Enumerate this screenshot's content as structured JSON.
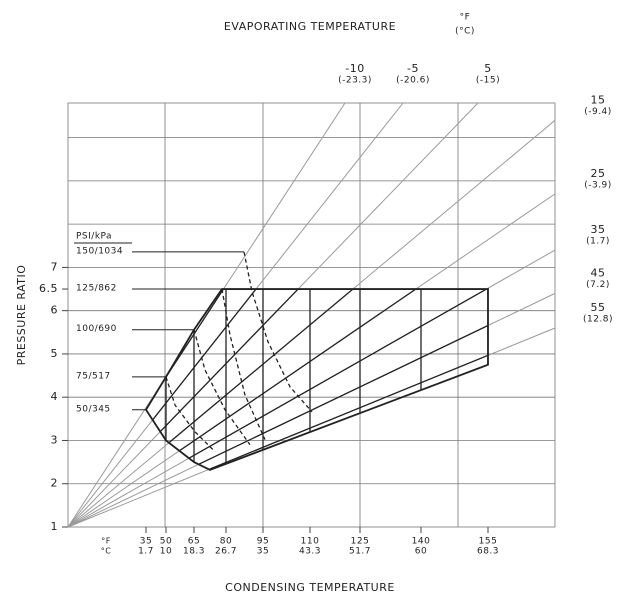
{
  "chart_data": {
    "type": "line",
    "title": "EVAPORATING TEMPERATURE",
    "title_unit_f": "°F",
    "title_unit_c": "(°C)",
    "xlabel": "CONDENSING TEMPERATURE",
    "ylabel": "PRESSURE RATIO",
    "xlim": [
      0,
      487
    ],
    "ylim": [
      1,
      10.8
    ],
    "xticks": [
      {
        "value": 78,
        "label": "35"
      },
      {
        "value": 98,
        "label": "50"
      },
      {
        "value": 126,
        "label": "65"
      },
      {
        "value": 158,
        "label": "80"
      },
      {
        "value": 195,
        "label": "95"
      },
      {
        "value": 242,
        "label": "110"
      },
      {
        "value": 292,
        "label": "125"
      },
      {
        "value": 353,
        "label": "140"
      },
      {
        "value": 420,
        "label": "155"
      }
    ],
    "xticks_c": [
      "1.7",
      "10",
      "18.3",
      "26.7",
      "35",
      "43.3",
      "51.7",
      "60",
      "68.3"
    ],
    "xtick_units": [
      "°F",
      "°C"
    ],
    "xgrid": [
      97,
      195,
      292,
      390
    ],
    "yticks": [
      1,
      2,
      3,
      4,
      5,
      6,
      6.5,
      7
    ],
    "ygrid": [
      2,
      3,
      4,
      5,
      6,
      7,
      8,
      9,
      10
    ],
    "series": [
      {
        "name": "-10",
        "name_c": "(-23.3)",
        "color": "#9a9a9a",
        "x": [
          0,
          277
        ],
        "y": [
          1,
          10.8
        ]
      },
      {
        "name": "-5",
        "name_c": "(-20.6)",
        "color": "#9a9a9a",
        "x": [
          0,
          335
        ],
        "y": [
          1,
          10.8
        ]
      },
      {
        "name": "5",
        "name_c": "(-15)",
        "color": "#9a9a9a",
        "x": [
          0,
          410
        ],
        "y": [
          1,
          10.8
        ]
      },
      {
        "name": "15",
        "name_c": "(-9.4)",
        "color": "#9a9a9a",
        "x": [
          0,
          487
        ],
        "y": [
          1,
          10.4
        ]
      },
      {
        "name": "25",
        "name_c": "(-3.9)",
        "color": "#9a9a9a",
        "x": [
          0,
          487
        ],
        "y": [
          1,
          8.7
        ]
      },
      {
        "name": "35",
        "name_c": "(1.7)",
        "color": "#9a9a9a",
        "x": [
          0,
          487
        ],
        "y": [
          1,
          7.4
        ]
      },
      {
        "name": "45",
        "name_c": "(7.2)",
        "color": "#9a9a9a",
        "x": [
          0,
          487
        ],
        "y": [
          1,
          6.4
        ]
      },
      {
        "name": "55",
        "name_c": "(12.8)",
        "color": "#9a9a9a",
        "x": [
          0,
          487
        ],
        "y": [
          1,
          5.6
        ]
      }
    ],
    "pressure_legend_title": "PSI/kPa",
    "pressure_lines": [
      {
        "name": "150/1034",
        "style": "dashed",
        "color": "#222",
        "x": [
          176,
          184,
          200,
          222,
          244
        ],
        "y": [
          7.36,
          6.44,
          5.28,
          4.24,
          3.66
        ]
      },
      {
        "name": "125/862",
        "style": "dashed",
        "color": "#222",
        "x": [
          154,
          162,
          177,
          197
        ],
        "y": [
          6.5,
          5.44,
          4.05,
          3.02
        ]
      },
      {
        "name": "100/690",
        "style": "dashed",
        "color": "#222",
        "x": [
          126,
          137,
          157,
          182
        ],
        "y": [
          5.56,
          4.63,
          3.71,
          2.9
        ]
      },
      {
        "name": "75/517",
        "style": "dashed",
        "color": "#222",
        "x": [
          98,
          107,
          127,
          147
        ],
        "y": [
          4.47,
          3.82,
          3.2,
          2.74
        ]
      },
      {
        "name": "50/345",
        "style": "solid",
        "color": "#222",
        "x": [
          78,
          98,
          126,
          142
        ],
        "y": [
          3.71,
          3.0,
          2.5,
          2.32
        ]
      }
    ],
    "envelope": {
      "color": "#222",
      "x": [
        78,
        98,
        126,
        154,
        420,
        420,
        142,
        126,
        98,
        78
      ],
      "y": [
        3.71,
        4.47,
        5.56,
        6.5,
        6.5,
        4.75,
        2.32,
        2.5,
        3.0,
        3.71
      ]
    }
  }
}
